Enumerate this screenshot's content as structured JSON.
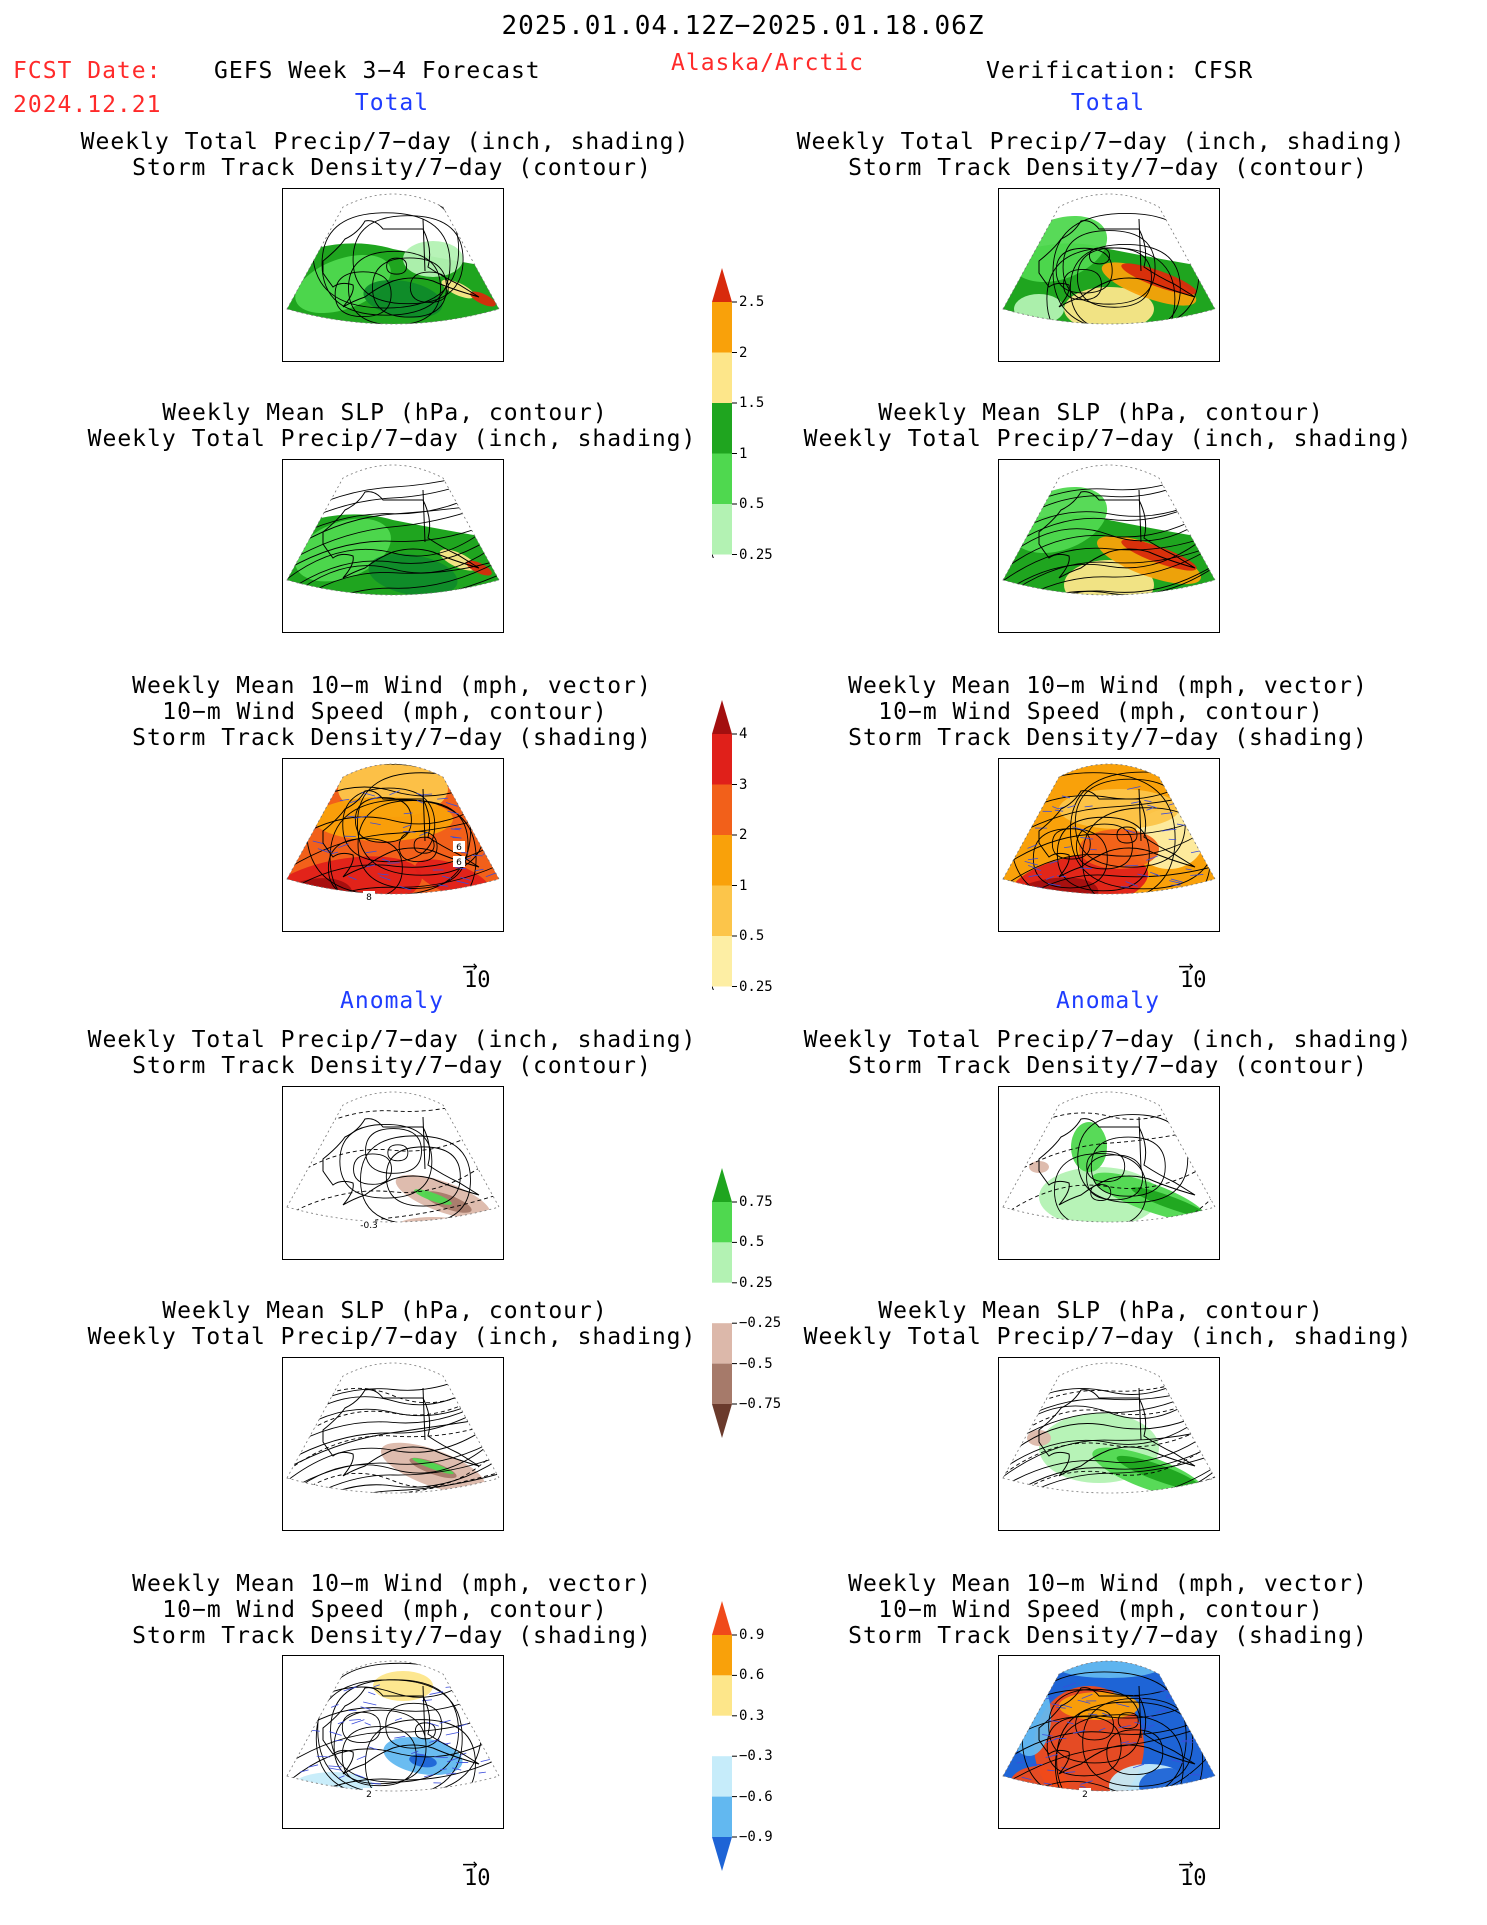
{
  "header": {
    "date_range": "2025.01.04.12Z−2025.01.18.06Z",
    "fcst_label": "FCST Date:",
    "fcst_date": "2024.12.21",
    "product": "GEFS Week 3−4 Forecast",
    "region": "Alaska/Arctic",
    "verification": "Verification: CFSR"
  },
  "sections": {
    "total": "Total",
    "anomaly": "Anomaly"
  },
  "titles": {
    "precip": [
      "Weekly Total Precip/7−day (inch, shading)",
      "Storm Track Density/7−day (contour)"
    ],
    "slp": [
      "Weekly Mean SLP (hPa, contour)",
      "Weekly Total Precip/7−day (inch, shading)"
    ],
    "wind": [
      "Weekly Mean 10−m Wind (mph, vector)",
      "10−m Wind Speed (mph, contour)",
      "Storm Track Density/7−day (shading)"
    ]
  },
  "vector_ref": "10",
  "panel_labels": {
    "fc_total_wind": [
      "8",
      "6",
      "6"
    ],
    "fc_anom_precip": [
      "-0.3"
    ],
    "fc_anom_wind": [
      "2"
    ],
    "ve_anom_wind": [
      "2"
    ]
  },
  "colorbars": {
    "precip_total": {
      "labels": [
        "2.5",
        "2",
        "1.5",
        "1",
        "0.5",
        "0.25"
      ],
      "colors": [
        "#d82a0c",
        "#f9a10a",
        "#fde68a",
        "#1fa51f",
        "#4fd84f",
        "#b3f2b3"
      ]
    },
    "storm_total": {
      "labels": [
        "4",
        "3",
        "2",
        "1",
        "0.5",
        "0.25"
      ],
      "colors": [
        "#a30f0f",
        "#e0201a",
        "#f2601a",
        "#f9a10a",
        "#fcc54a",
        "#fdeea4"
      ]
    },
    "precip_anom": {
      "labels": [
        "0.75",
        "0.5",
        "0.25",
        "−0.25",
        "−0.5",
        "−0.75"
      ],
      "colors": [
        "#1fa51f",
        "#4fd84f",
        "#b3f2b3",
        "#ffffff",
        "#dcb8aa",
        "#a67a6a",
        "#6a3a2c"
      ]
    },
    "storm_anom": {
      "labels": [
        "0.9",
        "0.6",
        "0.3",
        "−0.3",
        "−0.6",
        "−0.9"
      ],
      "colors": [
        "#f04a1a",
        "#f9a10a",
        "#fde68a",
        "#ffffff",
        "#c6ecfa",
        "#62b8f0",
        "#1e64d6"
      ]
    }
  },
  "chart_data": [
    {
      "type": "heatmap",
      "panel": "forecast-total-precip-storm",
      "title": "Weekly Total Precip/7−day (inch, shading) / Storm Track Density/7−day (contour)"
    },
    {
      "type": "heatmap",
      "panel": "verification-total-precip-storm",
      "title": "Weekly Total Precip/7−day (inch, shading) / Storm Track Density/7−day (contour)"
    },
    {
      "type": "heatmap",
      "panel": "forecast-total-slp-precip",
      "title": "Weekly Mean SLP (hPa, contour) / Weekly Total Precip/7−day (inch, shading)"
    },
    {
      "type": "heatmap",
      "panel": "verification-total-slp-precip",
      "title": "Weekly Mean SLP (hPa, contour) / Weekly Total Precip/7−day (inch, shading)"
    },
    {
      "type": "heatmap",
      "panel": "forecast-total-wind-storm",
      "title": "Weekly Mean 10−m Wind (mph, vector) / 10−m Wind Speed (mph, contour) / Storm Track Density/7−day (shading)"
    },
    {
      "type": "heatmap",
      "panel": "verification-total-wind-storm",
      "title": "Weekly Mean 10−m Wind (mph, vector) / 10−m Wind Speed (mph, contour) / Storm Track Density/7−day (shading)"
    },
    {
      "type": "heatmap",
      "panel": "forecast-anomaly-precip-storm",
      "title": "Weekly Total Precip/7−day (inch, shading) / Storm Track Density/7−day (contour)"
    },
    {
      "type": "heatmap",
      "panel": "verification-anomaly-precip-storm",
      "title": "Weekly Total Precip/7−day (inch, shading) / Storm Track Density/7−day (contour)"
    },
    {
      "type": "heatmap",
      "panel": "forecast-anomaly-slp-precip",
      "title": "Weekly Mean SLP (hPa, contour) / Weekly Total Precip/7−day (inch, shading)"
    },
    {
      "type": "heatmap",
      "panel": "verification-anomaly-slp-precip",
      "title": "Weekly Mean SLP (hPa, contour) / Weekly Total Precip/7−day (inch, shading)"
    },
    {
      "type": "heatmap",
      "panel": "forecast-anomaly-wind-storm",
      "title": "Weekly Mean 10−m Wind (mph, vector) / 10−m Wind Speed (mph, contour) / Storm Track Density/7−day (shading)"
    },
    {
      "type": "heatmap",
      "panel": "verification-anomaly-wind-storm",
      "title": "Weekly Mean 10−m Wind (mph, vector) / 10−m Wind Speed (mph, contour) / Storm Track Density/7−day (shading)"
    }
  ]
}
